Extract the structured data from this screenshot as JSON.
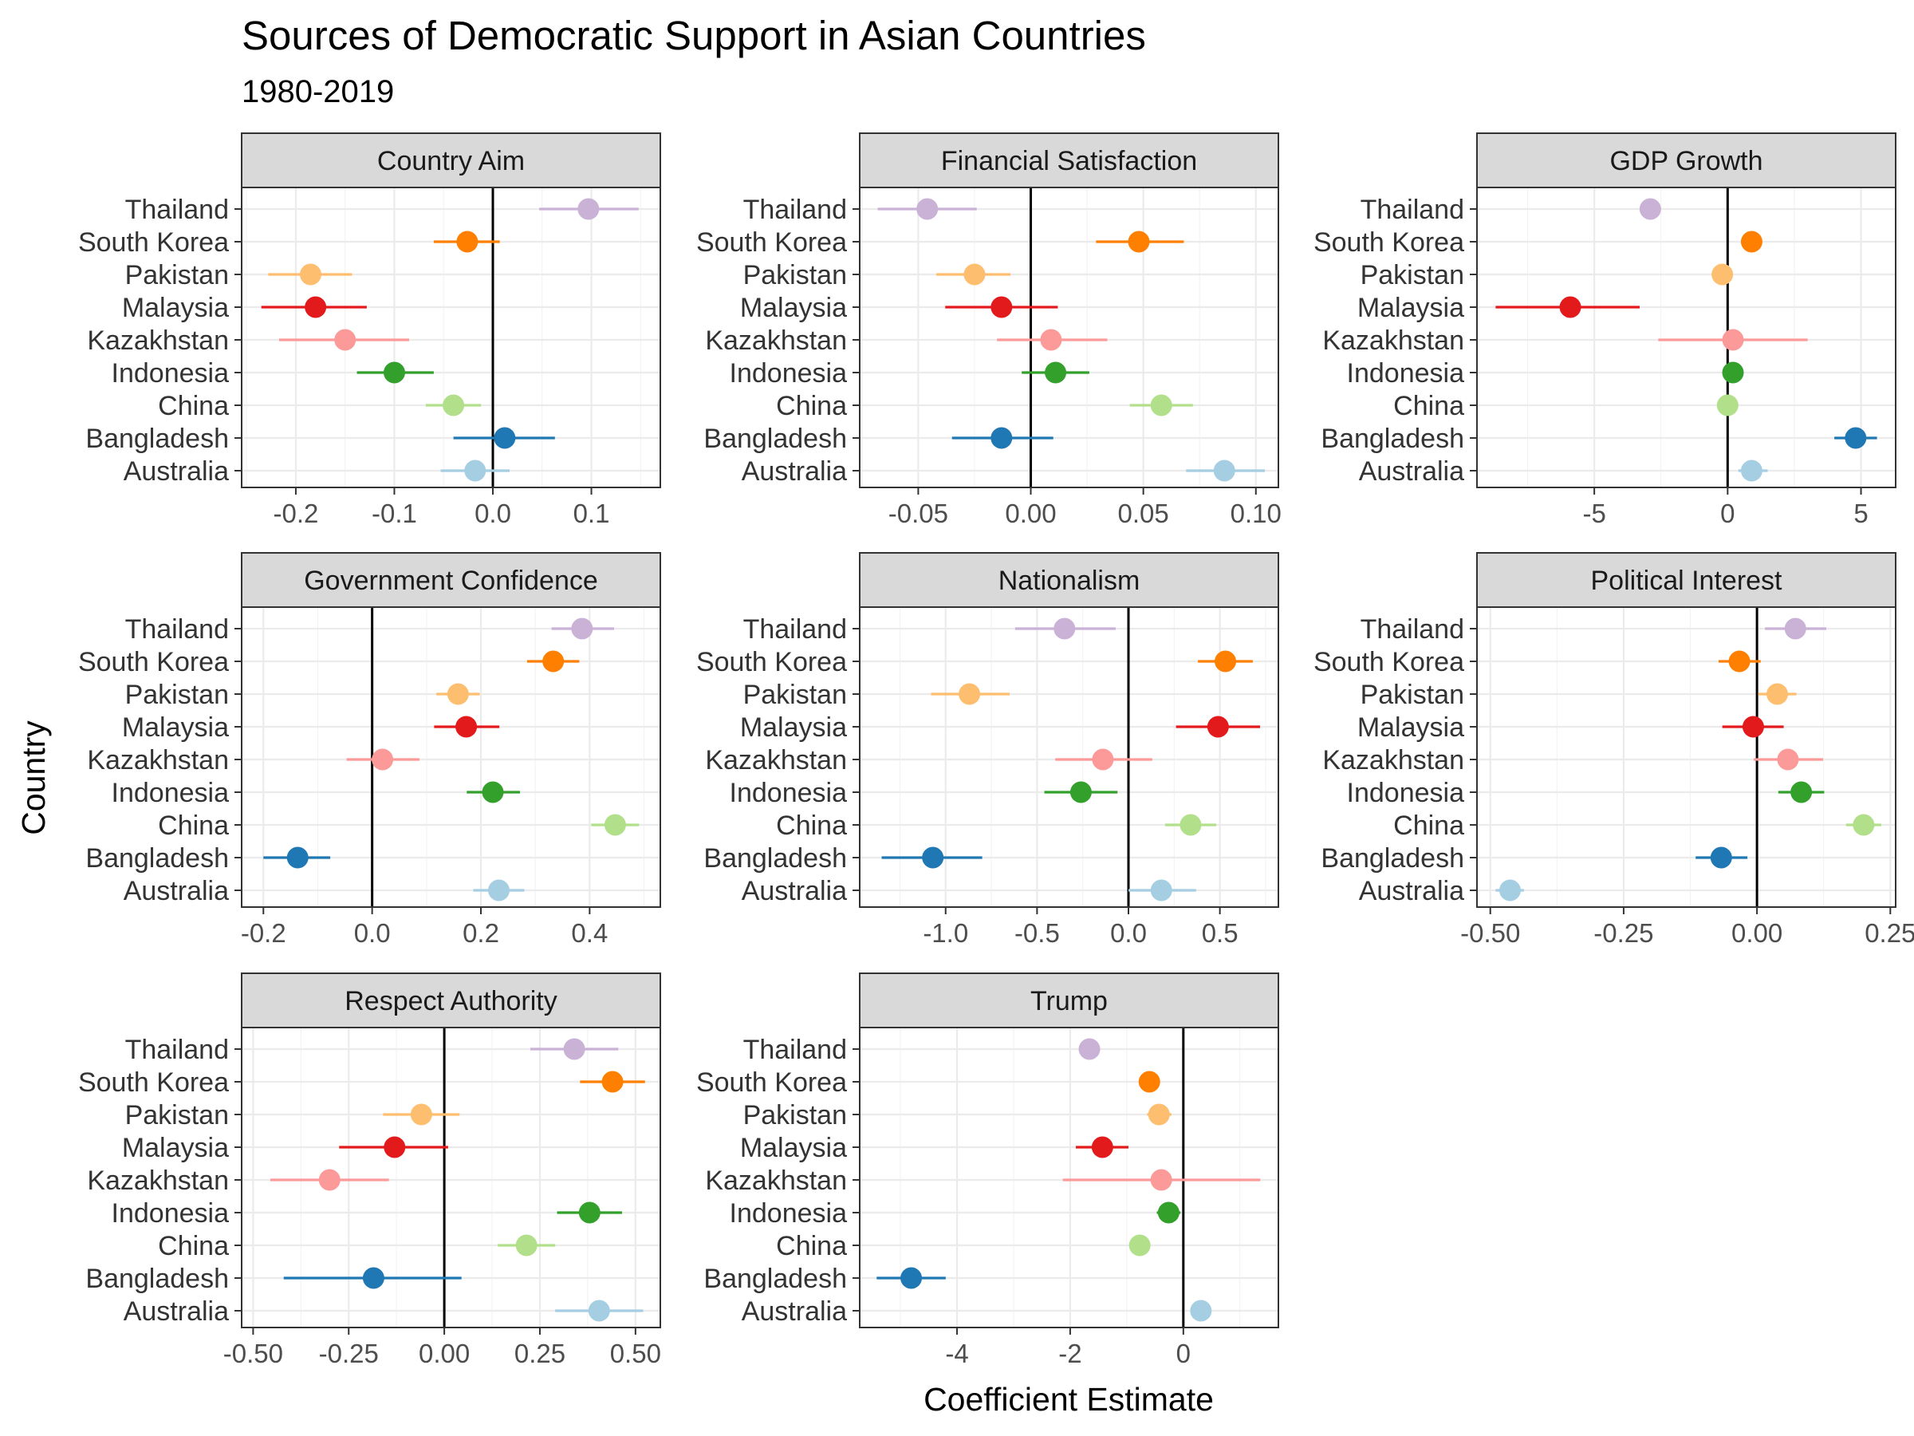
{
  "chart_data": {
    "type": "scatter",
    "title": "Sources of Democratic Support in Asian Countries",
    "subtitle": "1980-2019",
    "xlabel": "Coefficient Estimate",
    "ylabel": "Country",
    "grid": true,
    "legend": "none",
    "countries": [
      "Thailand",
      "South Korea",
      "Pakistan",
      "Malaysia",
      "Kazakhstan",
      "Indonesia",
      "China",
      "Bangladesh",
      "Australia"
    ],
    "colors": {
      "Thailand": "#CAB2D6",
      "South Korea": "#FF7F00",
      "Pakistan": "#FDBF6F",
      "Malaysia": "#E31A1C",
      "Kazakhstan": "#FB9A99",
      "Indonesia": "#33A02C",
      "China": "#B2DF8A",
      "Bangladesh": "#1F78B4",
      "Australia": "#A6CEE3"
    },
    "panels": [
      {
        "name": "Country Aim",
        "xlim": [
          -0.255,
          0.17
        ],
        "ticks": [
          -0.2,
          -0.1,
          0.0,
          0.1
        ],
        "tick_labels": [
          "-0.2",
          "-0.1",
          "0.0",
          "0.1"
        ],
        "points": [
          {
            "country": "Thailand",
            "est": 0.097,
            "lo": 0.047,
            "hi": 0.148
          },
          {
            "country": "South Korea",
            "est": -0.026,
            "lo": -0.06,
            "hi": 0.007
          },
          {
            "country": "Pakistan",
            "est": -0.185,
            "lo": -0.228,
            "hi": -0.143
          },
          {
            "country": "Malaysia",
            "est": -0.18,
            "lo": -0.235,
            "hi": -0.128
          },
          {
            "country": "Kazakhstan",
            "est": -0.15,
            "lo": -0.217,
            "hi": -0.085
          },
          {
            "country": "Indonesia",
            "est": -0.1,
            "lo": -0.138,
            "hi": -0.06
          },
          {
            "country": "China",
            "est": -0.04,
            "lo": -0.068,
            "hi": -0.012
          },
          {
            "country": "Bangladesh",
            "est": 0.012,
            "lo": -0.04,
            "hi": 0.063
          },
          {
            "country": "Australia",
            "est": -0.018,
            "lo": -0.053,
            "hi": 0.017
          }
        ]
      },
      {
        "name": "Financial Satisfaction",
        "xlim": [
          -0.076,
          0.11
        ],
        "ticks": [
          -0.05,
          0.0,
          0.05,
          0.1
        ],
        "tick_labels": [
          "-0.05",
          "0.00",
          "0.05",
          "0.10"
        ],
        "points": [
          {
            "country": "Thailand",
            "est": -0.046,
            "lo": -0.068,
            "hi": -0.024
          },
          {
            "country": "South Korea",
            "est": 0.048,
            "lo": 0.029,
            "hi": 0.068
          },
          {
            "country": "Pakistan",
            "est": -0.025,
            "lo": -0.042,
            "hi": -0.009
          },
          {
            "country": "Malaysia",
            "est": -0.013,
            "lo": -0.038,
            "hi": 0.012
          },
          {
            "country": "Kazakhstan",
            "est": 0.009,
            "lo": -0.015,
            "hi": 0.034
          },
          {
            "country": "Indonesia",
            "est": 0.011,
            "lo": -0.004,
            "hi": 0.026
          },
          {
            "country": "China",
            "est": 0.058,
            "lo": 0.044,
            "hi": 0.072
          },
          {
            "country": "Bangladesh",
            "est": -0.013,
            "lo": -0.035,
            "hi": 0.01
          },
          {
            "country": "Australia",
            "est": 0.086,
            "lo": 0.069,
            "hi": 0.104
          }
        ]
      },
      {
        "name": "GDP Growth",
        "xlim": [
          -9.4,
          6.3
        ],
        "ticks": [
          -5,
          0,
          5
        ],
        "tick_labels": [
          "-5",
          "0",
          "5"
        ],
        "points": [
          {
            "country": "Thailand",
            "est": -2.9,
            "lo": -3.2,
            "hi": -2.6
          },
          {
            "country": "South Korea",
            "est": 0.9,
            "lo": 0.6,
            "hi": 1.2
          },
          {
            "country": "Pakistan",
            "est": -0.2,
            "lo": -0.6,
            "hi": 0.2
          },
          {
            "country": "Malaysia",
            "est": -5.9,
            "lo": -8.7,
            "hi": -3.3
          },
          {
            "country": "Kazakhstan",
            "est": 0.2,
            "lo": -2.6,
            "hi": 3.0
          },
          {
            "country": "Indonesia",
            "est": 0.2,
            "lo": -0.1,
            "hi": 0.5
          },
          {
            "country": "China",
            "est": 0.0,
            "lo": -0.3,
            "hi": 0.3
          },
          {
            "country": "Bangladesh",
            "est": 4.8,
            "lo": 4.0,
            "hi": 5.6
          },
          {
            "country": "Australia",
            "est": 0.9,
            "lo": 0.4,
            "hi": 1.5
          }
        ]
      },
      {
        "name": "Government Confidence",
        "xlim": [
          -0.24,
          0.53
        ],
        "ticks": [
          -0.2,
          0.0,
          0.2,
          0.4
        ],
        "tick_labels": [
          "-0.2",
          "0.0",
          "0.2",
          "0.4"
        ],
        "points": [
          {
            "country": "Thailand",
            "est": 0.386,
            "lo": 0.33,
            "hi": 0.445
          },
          {
            "country": "South Korea",
            "est": 0.333,
            "lo": 0.285,
            "hi": 0.381
          },
          {
            "country": "Pakistan",
            "est": 0.158,
            "lo": 0.118,
            "hi": 0.198
          },
          {
            "country": "Malaysia",
            "est": 0.173,
            "lo": 0.114,
            "hi": 0.234
          },
          {
            "country": "Kazakhstan",
            "est": 0.019,
            "lo": -0.047,
            "hi": 0.087
          },
          {
            "country": "Indonesia",
            "est": 0.222,
            "lo": 0.174,
            "hi": 0.272
          },
          {
            "country": "China",
            "est": 0.447,
            "lo": 0.403,
            "hi": 0.491
          },
          {
            "country": "Bangladesh",
            "est": -0.137,
            "lo": -0.2,
            "hi": -0.077
          },
          {
            "country": "Australia",
            "est": 0.233,
            "lo": 0.186,
            "hi": 0.28
          }
        ]
      },
      {
        "name": "Nationalism",
        "xlim": [
          -1.47,
          0.82
        ],
        "ticks": [
          -1.0,
          -0.5,
          0.0,
          0.5
        ],
        "tick_labels": [
          "-1.0",
          "-0.5",
          "0.0",
          "0.5"
        ],
        "points": [
          {
            "country": "Thailand",
            "est": -0.35,
            "lo": -0.62,
            "hi": -0.07
          },
          {
            "country": "South Korea",
            "est": 0.53,
            "lo": 0.38,
            "hi": 0.68
          },
          {
            "country": "Pakistan",
            "est": -0.87,
            "lo": -1.08,
            "hi": -0.65
          },
          {
            "country": "Malaysia",
            "est": 0.49,
            "lo": 0.26,
            "hi": 0.72
          },
          {
            "country": "Kazakhstan",
            "est": -0.14,
            "lo": -0.4,
            "hi": 0.13
          },
          {
            "country": "Indonesia",
            "est": -0.26,
            "lo": -0.46,
            "hi": -0.06
          },
          {
            "country": "China",
            "est": 0.34,
            "lo": 0.2,
            "hi": 0.48
          },
          {
            "country": "Bangladesh",
            "est": -1.07,
            "lo": -1.35,
            "hi": -0.8
          },
          {
            "country": "Australia",
            "est": 0.18,
            "lo": 0.0,
            "hi": 0.37
          }
        ]
      },
      {
        "name": "Political Interest",
        "xlim": [
          -0.525,
          0.26
        ],
        "ticks": [
          -0.5,
          -0.25,
          0.0,
          0.25
        ],
        "tick_labels": [
          "-0.50",
          "-0.25",
          "0.00",
          "0.25"
        ],
        "points": [
          {
            "country": "Thailand",
            "est": 0.072,
            "lo": 0.015,
            "hi": 0.13
          },
          {
            "country": "South Korea",
            "est": -0.033,
            "lo": -0.072,
            "hi": 0.007
          },
          {
            "country": "Pakistan",
            "est": 0.038,
            "lo": 0.002,
            "hi": 0.074
          },
          {
            "country": "Malaysia",
            "est": -0.007,
            "lo": -0.065,
            "hi": 0.05
          },
          {
            "country": "Kazakhstan",
            "est": 0.058,
            "lo": -0.006,
            "hi": 0.124
          },
          {
            "country": "Indonesia",
            "est": 0.083,
            "lo": 0.04,
            "hi": 0.126
          },
          {
            "country": "China",
            "est": 0.2,
            "lo": 0.167,
            "hi": 0.233
          },
          {
            "country": "Bangladesh",
            "est": -0.067,
            "lo": -0.115,
            "hi": -0.018
          },
          {
            "country": "Australia",
            "est": -0.463,
            "lo": -0.49,
            "hi": -0.437
          }
        ]
      },
      {
        "name": "Respect Authority",
        "xlim": [
          -0.53,
          0.565
        ],
        "ticks": [
          -0.5,
          -0.25,
          0.0,
          0.25,
          0.5
        ],
        "tick_labels": [
          "-0.50",
          "-0.25",
          "0.00",
          "0.25",
          "0.50"
        ],
        "points": [
          {
            "country": "Thailand",
            "est": 0.34,
            "lo": 0.225,
            "hi": 0.455
          },
          {
            "country": "South Korea",
            "est": 0.44,
            "lo": 0.355,
            "hi": 0.525
          },
          {
            "country": "Pakistan",
            "est": -0.06,
            "lo": -0.16,
            "hi": 0.04
          },
          {
            "country": "Malaysia",
            "est": -0.13,
            "lo": -0.275,
            "hi": 0.01
          },
          {
            "country": "Kazakhstan",
            "est": -0.3,
            "lo": -0.455,
            "hi": -0.145
          },
          {
            "country": "Indonesia",
            "est": 0.38,
            "lo": 0.295,
            "hi": 0.465
          },
          {
            "country": "China",
            "est": 0.215,
            "lo": 0.14,
            "hi": 0.29
          },
          {
            "country": "Bangladesh",
            "est": -0.185,
            "lo": -0.42,
            "hi": 0.045
          },
          {
            "country": "Australia",
            "est": 0.405,
            "lo": 0.29,
            "hi": 0.52
          }
        ]
      },
      {
        "name": "Trump",
        "xlim": [
          -5.72,
          1.68
        ],
        "ticks": [
          -4,
          -2,
          0
        ],
        "tick_labels": [
          "-4",
          "-2",
          "0"
        ],
        "points": [
          {
            "country": "Thailand",
            "est": -1.66,
            "lo": -1.82,
            "hi": -1.5
          },
          {
            "country": "South Korea",
            "est": -0.6,
            "lo": -0.78,
            "hi": -0.43
          },
          {
            "country": "Pakistan",
            "est": -0.43,
            "lo": -0.64,
            "hi": -0.21
          },
          {
            "country": "Malaysia",
            "est": -1.43,
            "lo": -1.9,
            "hi": -0.97
          },
          {
            "country": "Kazakhstan",
            "est": -0.39,
            "lo": -2.13,
            "hi": 1.36
          },
          {
            "country": "Indonesia",
            "est": -0.26,
            "lo": -0.47,
            "hi": -0.05
          },
          {
            "country": "China",
            "est": -0.77,
            "lo": -0.93,
            "hi": -0.61
          },
          {
            "country": "Bangladesh",
            "est": -4.81,
            "lo": -5.42,
            "hi": -4.2
          },
          {
            "country": "Australia",
            "est": 0.31,
            "lo": 0.15,
            "hi": 0.47
          }
        ]
      }
    ]
  }
}
